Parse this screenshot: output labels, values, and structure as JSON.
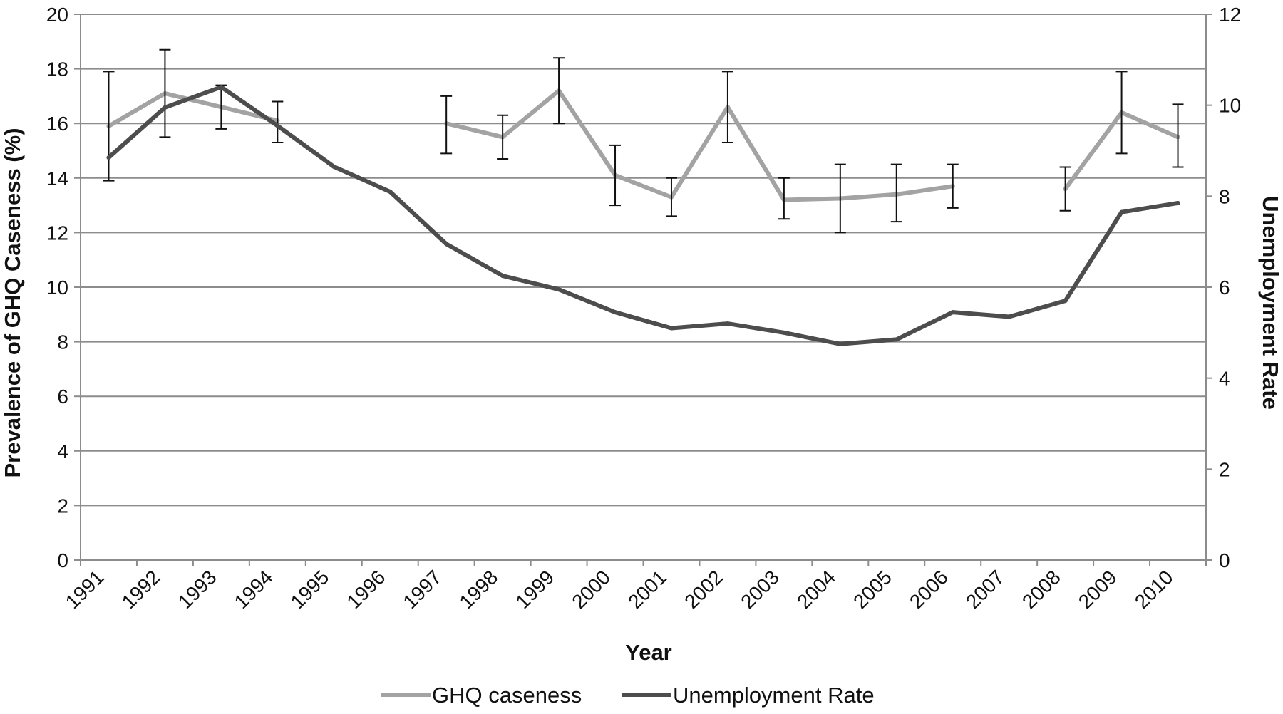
{
  "chart_data": {
    "type": "line",
    "title": "",
    "xlabel": "Year",
    "ylabel": "Prevalence of GHQ Caseness (%)",
    "y2label": "Unemployment Rate",
    "ylim": [
      0,
      20
    ],
    "y2lim": [
      0,
      12
    ],
    "y_ticks": [
      "0",
      "2",
      "4",
      "6",
      "8",
      "10",
      "12",
      "14",
      "16",
      "18",
      "20"
    ],
    "y2_ticks": [
      "0",
      "2",
      "4",
      "6",
      "8",
      "10",
      "12"
    ],
    "categories": [
      "1991",
      "1992",
      "1993",
      "1994",
      "1995",
      "1996",
      "1997",
      "1998",
      "1999",
      "2000",
      "2001",
      "2002",
      "2003",
      "2004",
      "2005",
      "2006",
      "2007",
      "2008",
      "2009",
      "2010"
    ],
    "grid": true,
    "legend": "bottom",
    "series": [
      {
        "name": "GHQ caseness",
        "axis": "left",
        "color": "#a3a3a3",
        "values": [
          15.9,
          17.1,
          16.6,
          16.1,
          null,
          null,
          16.0,
          15.5,
          17.2,
          14.1,
          13.3,
          16.6,
          13.2,
          13.25,
          13.4,
          13.7,
          null,
          13.6,
          16.4,
          15.5
        ],
        "error_low": [
          13.9,
          15.5,
          15.8,
          15.3,
          null,
          null,
          14.9,
          14.7,
          16.0,
          13.0,
          12.6,
          15.3,
          12.5,
          12.0,
          12.4,
          12.9,
          null,
          12.8,
          14.9,
          14.4
        ],
        "error_high": [
          17.9,
          18.7,
          17.4,
          16.8,
          null,
          null,
          17.0,
          16.3,
          18.4,
          15.2,
          14.0,
          17.9,
          14.0,
          14.5,
          14.5,
          14.5,
          null,
          14.4,
          17.9,
          16.7
        ]
      },
      {
        "name": "Unemployment Rate",
        "axis": "right",
        "color": "#4d4d4d",
        "values": [
          8.85,
          9.95,
          10.4,
          9.55,
          8.65,
          8.1,
          6.95,
          6.25,
          5.95,
          5.45,
          5.1,
          5.2,
          5.0,
          4.75,
          4.85,
          5.45,
          5.35,
          5.7,
          7.65,
          7.85
        ]
      }
    ]
  }
}
